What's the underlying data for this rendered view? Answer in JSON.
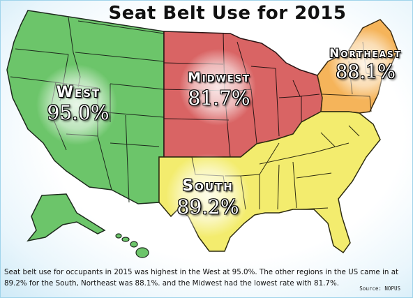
{
  "title": "Seat Belt Use for 2015",
  "regions": [
    {
      "key": "west",
      "name": "West",
      "rate": "95.0%",
      "color": "#6cc56a"
    },
    {
      "key": "midwest",
      "name": "Midwest",
      "rate": "81.7%",
      "color": "#d96464"
    },
    {
      "key": "northeast",
      "name": "Northeast",
      "rate": "88.1%",
      "color": "#f5b45a"
    },
    {
      "key": "south",
      "name": "South",
      "rate": "89.2%",
      "color": "#f3ec6e"
    }
  ],
  "caption": "Seat belt use for occupants in 2015 was highest in the West at 95.0%.  The other regions in the US came in at 89.2% for the South, Northeast was 88.1%. and the Midwest had the lowest rate with 81.7%.",
  "source": "Source: NOPUS"
}
